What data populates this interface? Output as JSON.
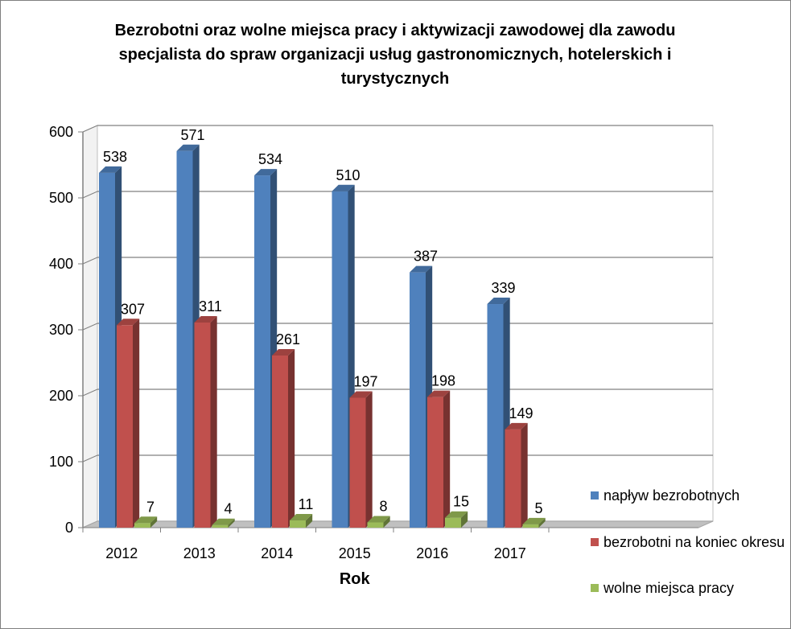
{
  "chart_data": {
    "type": "bar",
    "title": "Bezrobotni oraz wolne miejsca pracy i aktywizacji zawodowej dla zawodu specjalista do spraw organizacji usług gastronomicznych, hotelerskich i turystycznych",
    "xlabel": "Rok",
    "ylabel": "",
    "categories": [
      "2012",
      "2013",
      "2014",
      "2015",
      "2016",
      "2017"
    ],
    "series": [
      {
        "name": "napływ bezrobotnych",
        "color": "#4f81bd",
        "values": [
          538,
          571,
          534,
          510,
          387,
          339
        ]
      },
      {
        "name": "bezrobotni na koniec okresu",
        "color": "#c0504d",
        "values": [
          307,
          311,
          261,
          197,
          198,
          149
        ]
      },
      {
        "name": "wolne miejsca pracy",
        "color": "#9bbb59",
        "values": [
          7,
          4,
          11,
          8,
          15,
          5
        ]
      }
    ],
    "ylim": [
      0,
      600
    ],
    "yticks": [
      "0",
      "100",
      "200",
      "300",
      "400",
      "500",
      "600"
    ],
    "grid": true,
    "legend_position": "right",
    "style": "3d-clustered-column"
  }
}
